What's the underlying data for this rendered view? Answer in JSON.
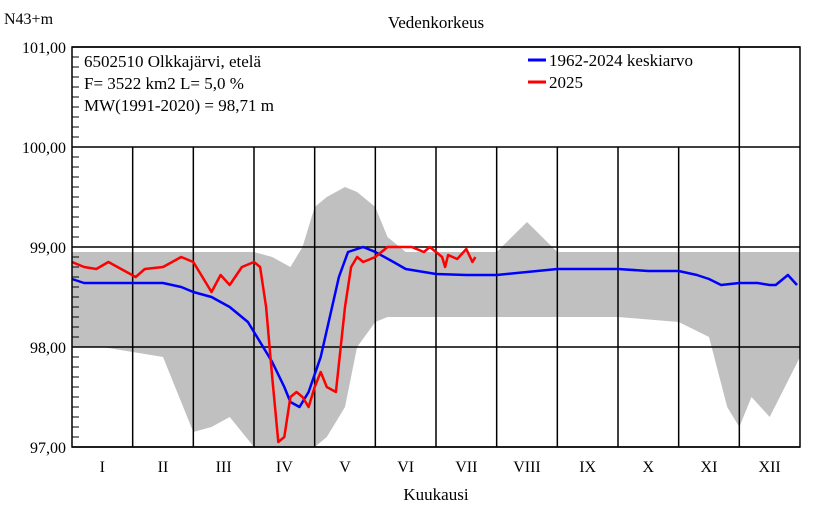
{
  "chart_data": {
    "type": "line",
    "title": "Vedenkorkeus",
    "ylabel": "N43+m",
    "xlabel": "Kuukausi",
    "ylim": [
      97.0,
      101.0
    ],
    "xlim": [
      0,
      12
    ],
    "yticks": [
      97.0,
      98.0,
      99.0,
      100.0,
      101.0
    ],
    "ytick_labels": [
      "97,00",
      "98,00",
      "99,00",
      "100,00",
      "101,00"
    ],
    "categories": [
      "I",
      "II",
      "III",
      "IV",
      "V",
      "VI",
      "VII",
      "VIII",
      "IX",
      "X",
      "XI",
      "XII"
    ],
    "grid": true,
    "info_lines": [
      "6502510 Olkkajärvi, etelä",
      "F=   3522 km2 L=  5,0 %",
      "MW(1991-2020) = 98,71 m"
    ],
    "legend_position": "top-right",
    "colors": {
      "band": "#c0c0c0",
      "mean": "#0000ff",
      "current": "#ff0000",
      "grid": "#000000"
    },
    "band": {
      "name": "",
      "x": [
        0.0,
        0.5,
        1.0,
        1.5,
        2.0,
        2.3,
        2.6,
        3.0,
        3.3,
        3.6,
        3.8,
        4.0,
        4.2,
        4.5,
        4.7,
        5.0,
        5.2,
        5.5,
        6.0,
        7.0,
        7.5,
        8.0,
        9.0,
        10.0,
        10.5,
        10.8,
        11.0,
        11.2,
        11.5,
        12.0
      ],
      "high": [
        98.95,
        98.95,
        98.95,
        98.95,
        98.95,
        98.95,
        98.95,
        98.95,
        98.9,
        98.8,
        99.0,
        99.4,
        99.5,
        99.6,
        99.55,
        99.4,
        99.1,
        98.95,
        98.95,
        98.95,
        99.25,
        98.95,
        98.95,
        98.95,
        98.95,
        98.95,
        98.95,
        98.95,
        98.95,
        98.95
      ],
      "low": [
        98.0,
        98.0,
        97.95,
        97.9,
        97.15,
        97.2,
        97.3,
        97.0,
        97.0,
        97.0,
        97.0,
        97.0,
        97.1,
        97.4,
        98.0,
        98.25,
        98.3,
        98.3,
        98.3,
        98.3,
        98.3,
        98.3,
        98.3,
        98.25,
        98.1,
        97.4,
        97.2,
        97.5,
        97.3,
        97.9
      ]
    },
    "series": [
      {
        "name": "1962-2024 keskiarvo",
        "x": [
          0.0,
          0.2,
          0.5,
          1.0,
          1.5,
          1.8,
          2.0,
          2.3,
          2.6,
          2.9,
          3.1,
          3.3,
          3.5,
          3.6,
          3.75,
          3.9,
          4.1,
          4.25,
          4.4,
          4.55,
          4.8,
          5.0,
          5.3,
          5.5,
          6.0,
          6.5,
          7.0,
          7.5,
          8.0,
          8.5,
          9.0,
          9.5,
          10.0,
          10.3,
          10.5,
          10.7,
          11.0,
          11.3,
          11.5,
          11.6,
          11.8,
          11.95
        ],
        "values": [
          98.68,
          98.64,
          98.64,
          98.64,
          98.64,
          98.6,
          98.55,
          98.5,
          98.4,
          98.25,
          98.05,
          97.85,
          97.6,
          97.45,
          97.4,
          97.55,
          97.9,
          98.3,
          98.7,
          98.95,
          99.0,
          98.95,
          98.85,
          98.78,
          98.73,
          98.72,
          98.72,
          98.75,
          98.78,
          98.78,
          98.78,
          98.76,
          98.76,
          98.72,
          98.68,
          98.62,
          98.64,
          98.64,
          98.62,
          98.62,
          98.72,
          98.62
        ]
      },
      {
        "name": "2025",
        "x": [
          0.0,
          0.2,
          0.4,
          0.6,
          0.9,
          1.05,
          1.2,
          1.5,
          1.8,
          2.0,
          2.1,
          2.3,
          2.45,
          2.6,
          2.8,
          3.0,
          3.1,
          3.2,
          3.3,
          3.4,
          3.5,
          3.6,
          3.7,
          3.8,
          3.9,
          4.0,
          4.1,
          4.2,
          4.35,
          4.5,
          4.6,
          4.7,
          4.8,
          5.0,
          5.2,
          5.4,
          5.6,
          5.8,
          5.9,
          6.0,
          6.1,
          6.15,
          6.2,
          6.35,
          6.5,
          6.6,
          6.65
        ],
        "values": [
          98.85,
          98.8,
          98.78,
          98.85,
          98.75,
          98.7,
          98.78,
          98.8,
          98.9,
          98.85,
          98.75,
          98.55,
          98.72,
          98.62,
          98.8,
          98.85,
          98.8,
          98.4,
          97.7,
          97.05,
          97.1,
          97.5,
          97.55,
          97.5,
          97.4,
          97.6,
          97.75,
          97.6,
          97.55,
          98.4,
          98.8,
          98.9,
          98.85,
          98.9,
          99.0,
          99.0,
          99.0,
          98.95,
          99.0,
          98.95,
          98.9,
          98.8,
          98.92,
          98.88,
          98.98,
          98.85,
          98.9
        ]
      }
    ]
  }
}
